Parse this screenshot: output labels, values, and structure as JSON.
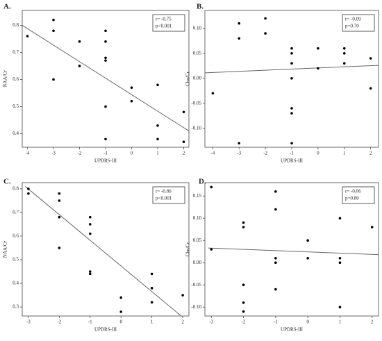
{
  "chart_data": [
    {
      "type": "scatter",
      "title": "A.",
      "xlabel": "UPDRS-III",
      "ylabel": "NAA/Cr",
      "annotations": [
        "r= -0.75",
        "p<0.001"
      ],
      "x": [
        -4,
        -3,
        -3,
        -3,
        -2,
        -2,
        -1,
        -1,
        -1,
        -1,
        -1,
        -1,
        0,
        0,
        1,
        1,
        1,
        2,
        2
      ],
      "y": [
        0.76,
        0.82,
        0.78,
        0.6,
        0.74,
        0.65,
        0.78,
        0.74,
        0.68,
        0.67,
        0.5,
        0.38,
        0.57,
        0.52,
        0.58,
        0.43,
        0.38,
        0.48,
        0.37
      ],
      "fit": {
        "x": [
          -4.2,
          2.2
        ],
        "y": [
          0.8,
          0.41
        ]
      },
      "xlim": [
        -4.2,
        2.2
      ],
      "xticks": [
        -4,
        -3,
        -2,
        -1,
        0,
        1,
        2
      ],
      "ylim": [
        0.35,
        0.855
      ],
      "yticks": [
        0.4,
        0.5,
        0.6,
        0.7,
        0.8
      ]
    },
    {
      "type": "scatter",
      "title": "B.",
      "xlabel": "UPDRS-III",
      "ylabel": "Cho/Cr",
      "annotations": [
        "r= -0.09",
        "p=0.70"
      ],
      "x": [
        -4,
        -3,
        -3,
        -3,
        -2,
        -2,
        -1,
        -1,
        -1,
        -1,
        -1,
        -1,
        -1,
        0,
        0,
        1,
        1,
        1,
        2,
        2
      ],
      "y": [
        -0.03,
        0.11,
        0.08,
        -0.13,
        0.12,
        0.09,
        0.06,
        0.05,
        0.03,
        0.0,
        -0.06,
        -0.07,
        -0.13,
        0.06,
        0.02,
        0.06,
        0.05,
        0.03,
        0.04,
        -0.02
      ],
      "fit": {
        "x": [
          -4.3,
          2.3
        ],
        "y": [
          0.011,
          0.026
        ]
      },
      "xlim": [
        -4.3,
        2.3
      ],
      "xticks": [
        -4,
        -3,
        -2,
        -1,
        0,
        1,
        2
      ],
      "ylim": [
        -0.138,
        0.136
      ],
      "yticks": [
        {
          "value": -0.1,
          "label": "-0.10"
        },
        -0.05,
        {
          "value": 0,
          "label": "0.00"
        },
        0.05,
        {
          "value": 0.1,
          "label": "0.10"
        }
      ]
    },
    {
      "type": "scatter",
      "title": "C.",
      "xlabel": "UPDRS-III",
      "ylabel": "NAA/Cr",
      "annotations": [
        "r= -0.86",
        "p<0.001"
      ],
      "x": [
        -3,
        -3,
        -2,
        -2,
        -2,
        -2,
        -1,
        -1,
        -1,
        -1,
        -1,
        0,
        0,
        1,
        1,
        1,
        2
      ],
      "y": [
        0.8,
        0.78,
        0.78,
        0.75,
        0.68,
        0.55,
        0.68,
        0.65,
        0.61,
        0.45,
        0.44,
        0.34,
        0.28,
        0.44,
        0.38,
        0.32,
        0.35
      ],
      "fit": {
        "x": [
          -3.1,
          1.95
        ],
        "y": [
          0.81,
          0.262
        ]
      },
      "xlim": [
        -3.2,
        2.2
      ],
      "xticks": [
        -3,
        -2,
        -1,
        0,
        1,
        2
      ],
      "ylim": [
        0.262,
        0.826
      ],
      "yticks": [
        0.3,
        0.4,
        0.5,
        0.6,
        0.7,
        0.8
      ]
    },
    {
      "type": "scatter",
      "title": "D.",
      "xlabel": "UPDRS-III",
      "ylabel": "Cho/Cr",
      "annotations": [
        "r= -0.06",
        "p=0.80"
      ],
      "x": [
        -3,
        -3,
        -2,
        -2,
        -2,
        -2,
        -2,
        -1,
        -1,
        -1,
        -1,
        -1,
        0,
        0,
        1,
        1,
        1,
        1,
        2
      ],
      "y": [
        0.17,
        0.03,
        0.09,
        0.08,
        -0.05,
        -0.09,
        -0.11,
        0.16,
        0.12,
        0.01,
        0.0,
        -0.06,
        0.05,
        0.01,
        0.1,
        0.01,
        0.0,
        -0.1,
        0.08
      ],
      "fit": {
        "x": [
          -3.1,
          2.2
        ],
        "y": [
          0.033,
          0.018
        ]
      },
      "xlim": [
        -3.2,
        2.2
      ],
      "xticks": [
        -3,
        -2,
        -1,
        0,
        1,
        2
      ],
      "ylim": [
        -0.12,
        0.18
      ],
      "yticks": [
        {
          "value": -0.1,
          "label": "-0.10"
        },
        -0.05,
        {
          "value": 0,
          "label": "0.00"
        },
        0.05,
        {
          "value": 0.1,
          "label": "0.10"
        },
        0.15
      ]
    }
  ]
}
